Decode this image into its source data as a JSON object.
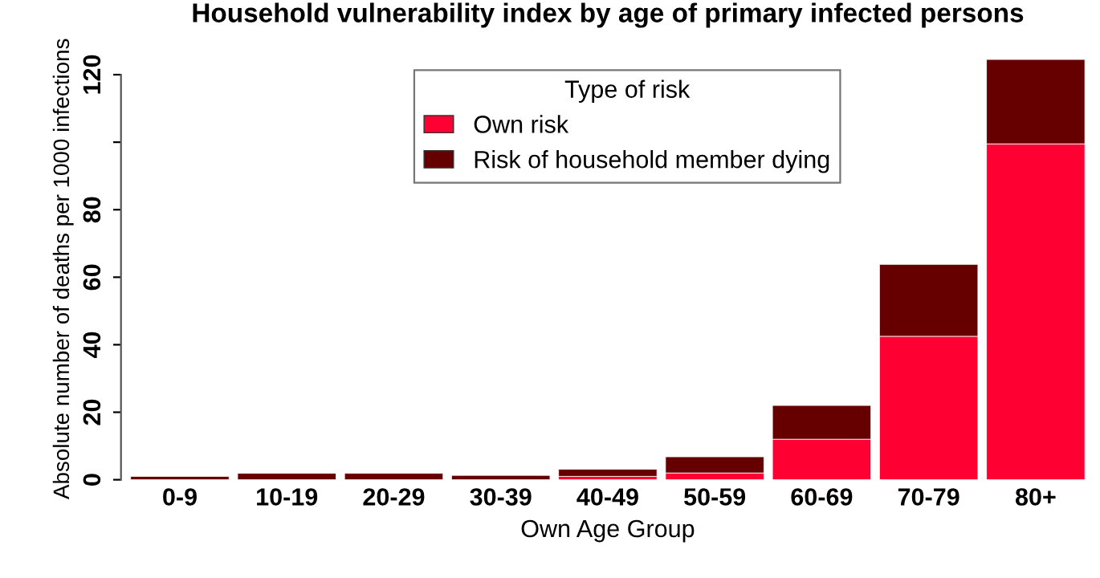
{
  "chart_data": {
    "type": "bar",
    "stacked": true,
    "title": "Household vulnerability index by age of primary infected persons",
    "xlabel": "Own Age Group",
    "ylabel": "Absolute number of deaths per 1000 infections",
    "legend_title": "Type of risk",
    "legend": "top",
    "grid": false,
    "categories": [
      "0-9",
      "10-19",
      "20-29",
      "30-39",
      "40-49",
      "50-59",
      "60-69",
      "70-79",
      "80+"
    ],
    "series": [
      {
        "name": "Own risk",
        "color": "#ff0033",
        "values": [
          0,
          null,
          null,
          null,
          1,
          2,
          12,
          42.5,
          99.5
        ]
      },
      {
        "name": "Risk of household member dying",
        "color": "#660000",
        "values": [
          1,
          1.9,
          1.9,
          1.3,
          2.1,
          4.8,
          10,
          21.3,
          25
        ]
      }
    ],
    "ylim": [
      0,
      125
    ],
    "yticks": [
      0,
      20,
      40,
      60,
      80,
      {
        "value": 100,
        "label": null
      },
      120
    ]
  }
}
